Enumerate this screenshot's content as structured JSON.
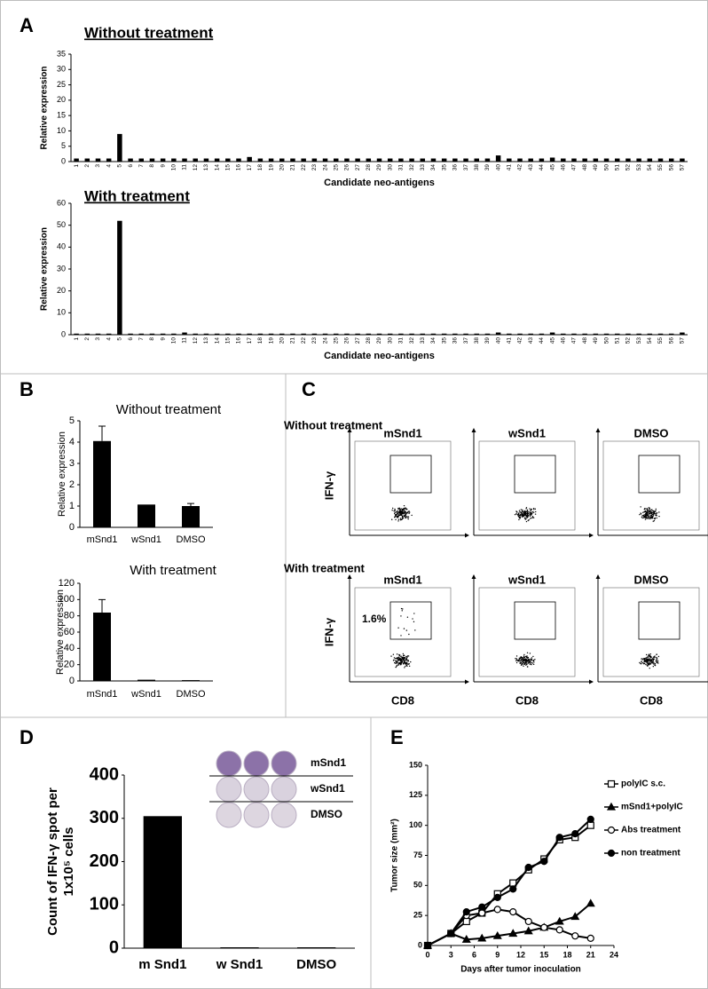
{
  "panel_labels": [
    "A",
    "B",
    "C",
    "D",
    "E"
  ],
  "flow": {
    "row_titles": [
      "Without treatment",
      "With treatment"
    ],
    "columns": [
      "mSnd1",
      "wSnd1",
      "DMSO"
    ],
    "y_label": "IFN-γ",
    "x_label": "CD8",
    "gate_label": "1.6%"
  },
  "chart_data": [
    {
      "type": "bar",
      "title": "Without treatment",
      "x_label": "Candidate neo-antigens",
      "y_label": "Relative expression",
      "color": "#000000",
      "categories": [
        "1",
        "2",
        "3",
        "4",
        "5",
        "6",
        "7",
        "8",
        "9",
        "10",
        "11",
        "12",
        "13",
        "14",
        "15",
        "16",
        "17",
        "18",
        "19",
        "20",
        "21",
        "22",
        "23",
        "24",
        "25",
        "26",
        "27",
        "28",
        "29",
        "30",
        "31",
        "32",
        "33",
        "34",
        "35",
        "36",
        "37",
        "38",
        "39",
        "40",
        "41",
        "42",
        "43",
        "44",
        "45",
        "46",
        "47",
        "48",
        "49",
        "50",
        "51",
        "52",
        "53",
        "54",
        "55",
        "56",
        "57"
      ],
      "values": [
        1,
        1,
        1,
        1,
        9,
        1,
        1,
        1,
        1,
        1,
        1,
        1,
        1,
        1,
        1,
        1,
        1.5,
        1,
        1,
        1,
        1,
        1,
        1,
        1,
        1,
        1,
        1,
        1,
        1,
        1,
        1,
        1,
        1,
        1,
        1,
        1,
        1,
        1,
        1,
        2,
        1,
        1,
        1,
        1,
        1.3,
        1,
        1,
        1,
        1,
        1,
        1,
        1,
        1,
        1,
        1,
        1,
        1
      ],
      "ylim": [
        0,
        35
      ],
      "yticks": [
        0,
        5,
        10,
        15,
        20,
        25,
        30,
        35
      ]
    },
    {
      "type": "bar",
      "title": "With treatment",
      "x_label": "Candidate neo-antigens",
      "y_label": "Relative expression",
      "color": "#000000",
      "categories": [
        "1",
        "2",
        "3",
        "4",
        "5",
        "6",
        "7",
        "8",
        "9",
        "10",
        "11",
        "12",
        "13",
        "14",
        "15",
        "16",
        "17",
        "18",
        "19",
        "20",
        "21",
        "22",
        "23",
        "24",
        "25",
        "26",
        "27",
        "28",
        "29",
        "30",
        "31",
        "32",
        "33",
        "34",
        "35",
        "36",
        "37",
        "38",
        "39",
        "40",
        "41",
        "42",
        "43",
        "44",
        "45",
        "46",
        "47",
        "48",
        "49",
        "50",
        "51",
        "52",
        "53",
        "54",
        "55",
        "56",
        "57"
      ],
      "values": [
        0.5,
        0.5,
        0.5,
        0.5,
        52,
        0.5,
        0.5,
        0.5,
        0.5,
        0.5,
        1,
        0.5,
        0.5,
        0.5,
        0.5,
        0.5,
        0.5,
        0.5,
        0.5,
        0.5,
        0.5,
        0.5,
        0.5,
        0.5,
        0.5,
        0.5,
        0.5,
        0.5,
        0.5,
        0.5,
        0.5,
        0.5,
        0.5,
        0.5,
        0.5,
        0.5,
        0.5,
        0.5,
        0.5,
        1,
        0.5,
        0.5,
        0.5,
        0.5,
        1,
        0.5,
        0.5,
        0.5,
        0.5,
        0.5,
        0.5,
        0.5,
        0.5,
        0.5,
        0.5,
        0.5,
        1
      ],
      "ylim": [
        0,
        60
      ],
      "yticks": [
        0,
        10,
        20,
        30,
        40,
        50,
        60
      ]
    },
    {
      "type": "bar",
      "title": "Without treatment",
      "y_label": "Relative expression",
      "color": "#000000",
      "categories": [
        "mSnd1",
        "wSnd1",
        "DMSO"
      ],
      "values": [
        4.05,
        1.07,
        1.0
      ],
      "errors": [
        0.7,
        null,
        0.12
      ],
      "ylim": [
        0,
        5
      ],
      "yticks": [
        0,
        1,
        2,
        3,
        4,
        5
      ]
    },
    {
      "type": "bar",
      "title": "With treatment",
      "y_label": "Relative expression",
      "color": "#000000",
      "categories": [
        "mSnd1",
        "wSnd1",
        "DMSO"
      ],
      "values": [
        84,
        1.5,
        1.0
      ],
      "errors": [
        16,
        null,
        null
      ],
      "ylim": [
        0,
        120
      ],
      "yticks": [
        0,
        20,
        40,
        60,
        80,
        100,
        120
      ]
    },
    {
      "type": "bar",
      "y_label": [
        "Count of IFN-γ spot per",
        "1x10⁵ cells"
      ],
      "color": "#000000",
      "categories": [
        "m Snd1",
        "w Snd1",
        "DMSO"
      ],
      "values": [
        305,
        2,
        2
      ],
      "ylim": [
        0,
        400
      ],
      "yticks": [
        0,
        100,
        200,
        300,
        400
      ],
      "inset_labels": [
        "mSnd1",
        "wSnd1",
        "DMSO"
      ]
    },
    {
      "type": "line",
      "x_label": "Days after tumor inoculation",
      "y_label": "Tumor size (mm²)",
      "legend": "right",
      "x": [
        0,
        3,
        5,
        7,
        9,
        11,
        13,
        15,
        17,
        19,
        21
      ],
      "series": [
        {
          "name": "polyIC s.c.",
          "color": "#000000",
          "marker": "square",
          "filled": false,
          "values": [
            0,
            10,
            20,
            27,
            43,
            52,
            63,
            72,
            88,
            90,
            100
          ]
        },
        {
          "name": "mSnd1+polyIC",
          "color": "#000000",
          "marker": "triangle",
          "filled": true,
          "values": [
            0,
            10,
            5,
            6,
            8,
            10,
            12,
            15,
            20,
            24,
            35
          ]
        },
        {
          "name": "Abs treatment",
          "color": "#000000",
          "marker": "circle",
          "filled": false,
          "values": [
            0,
            10,
            25,
            27,
            30,
            28,
            20,
            15,
            13,
            8,
            6
          ]
        },
        {
          "name": "non treatment",
          "color": "#000000",
          "marker": "circle",
          "filled": true,
          "values": [
            0,
            10,
            28,
            32,
            40,
            47,
            65,
            70,
            90,
            93,
            105
          ]
        }
      ],
      "xlim": [
        0,
        24
      ],
      "xticks": [
        0,
        3,
        6,
        9,
        12,
        15,
        18,
        21,
        24
      ],
      "ylim": [
        0,
        150
      ],
      "yticks": [
        0,
        25,
        50,
        75,
        100,
        125,
        150
      ]
    }
  ]
}
